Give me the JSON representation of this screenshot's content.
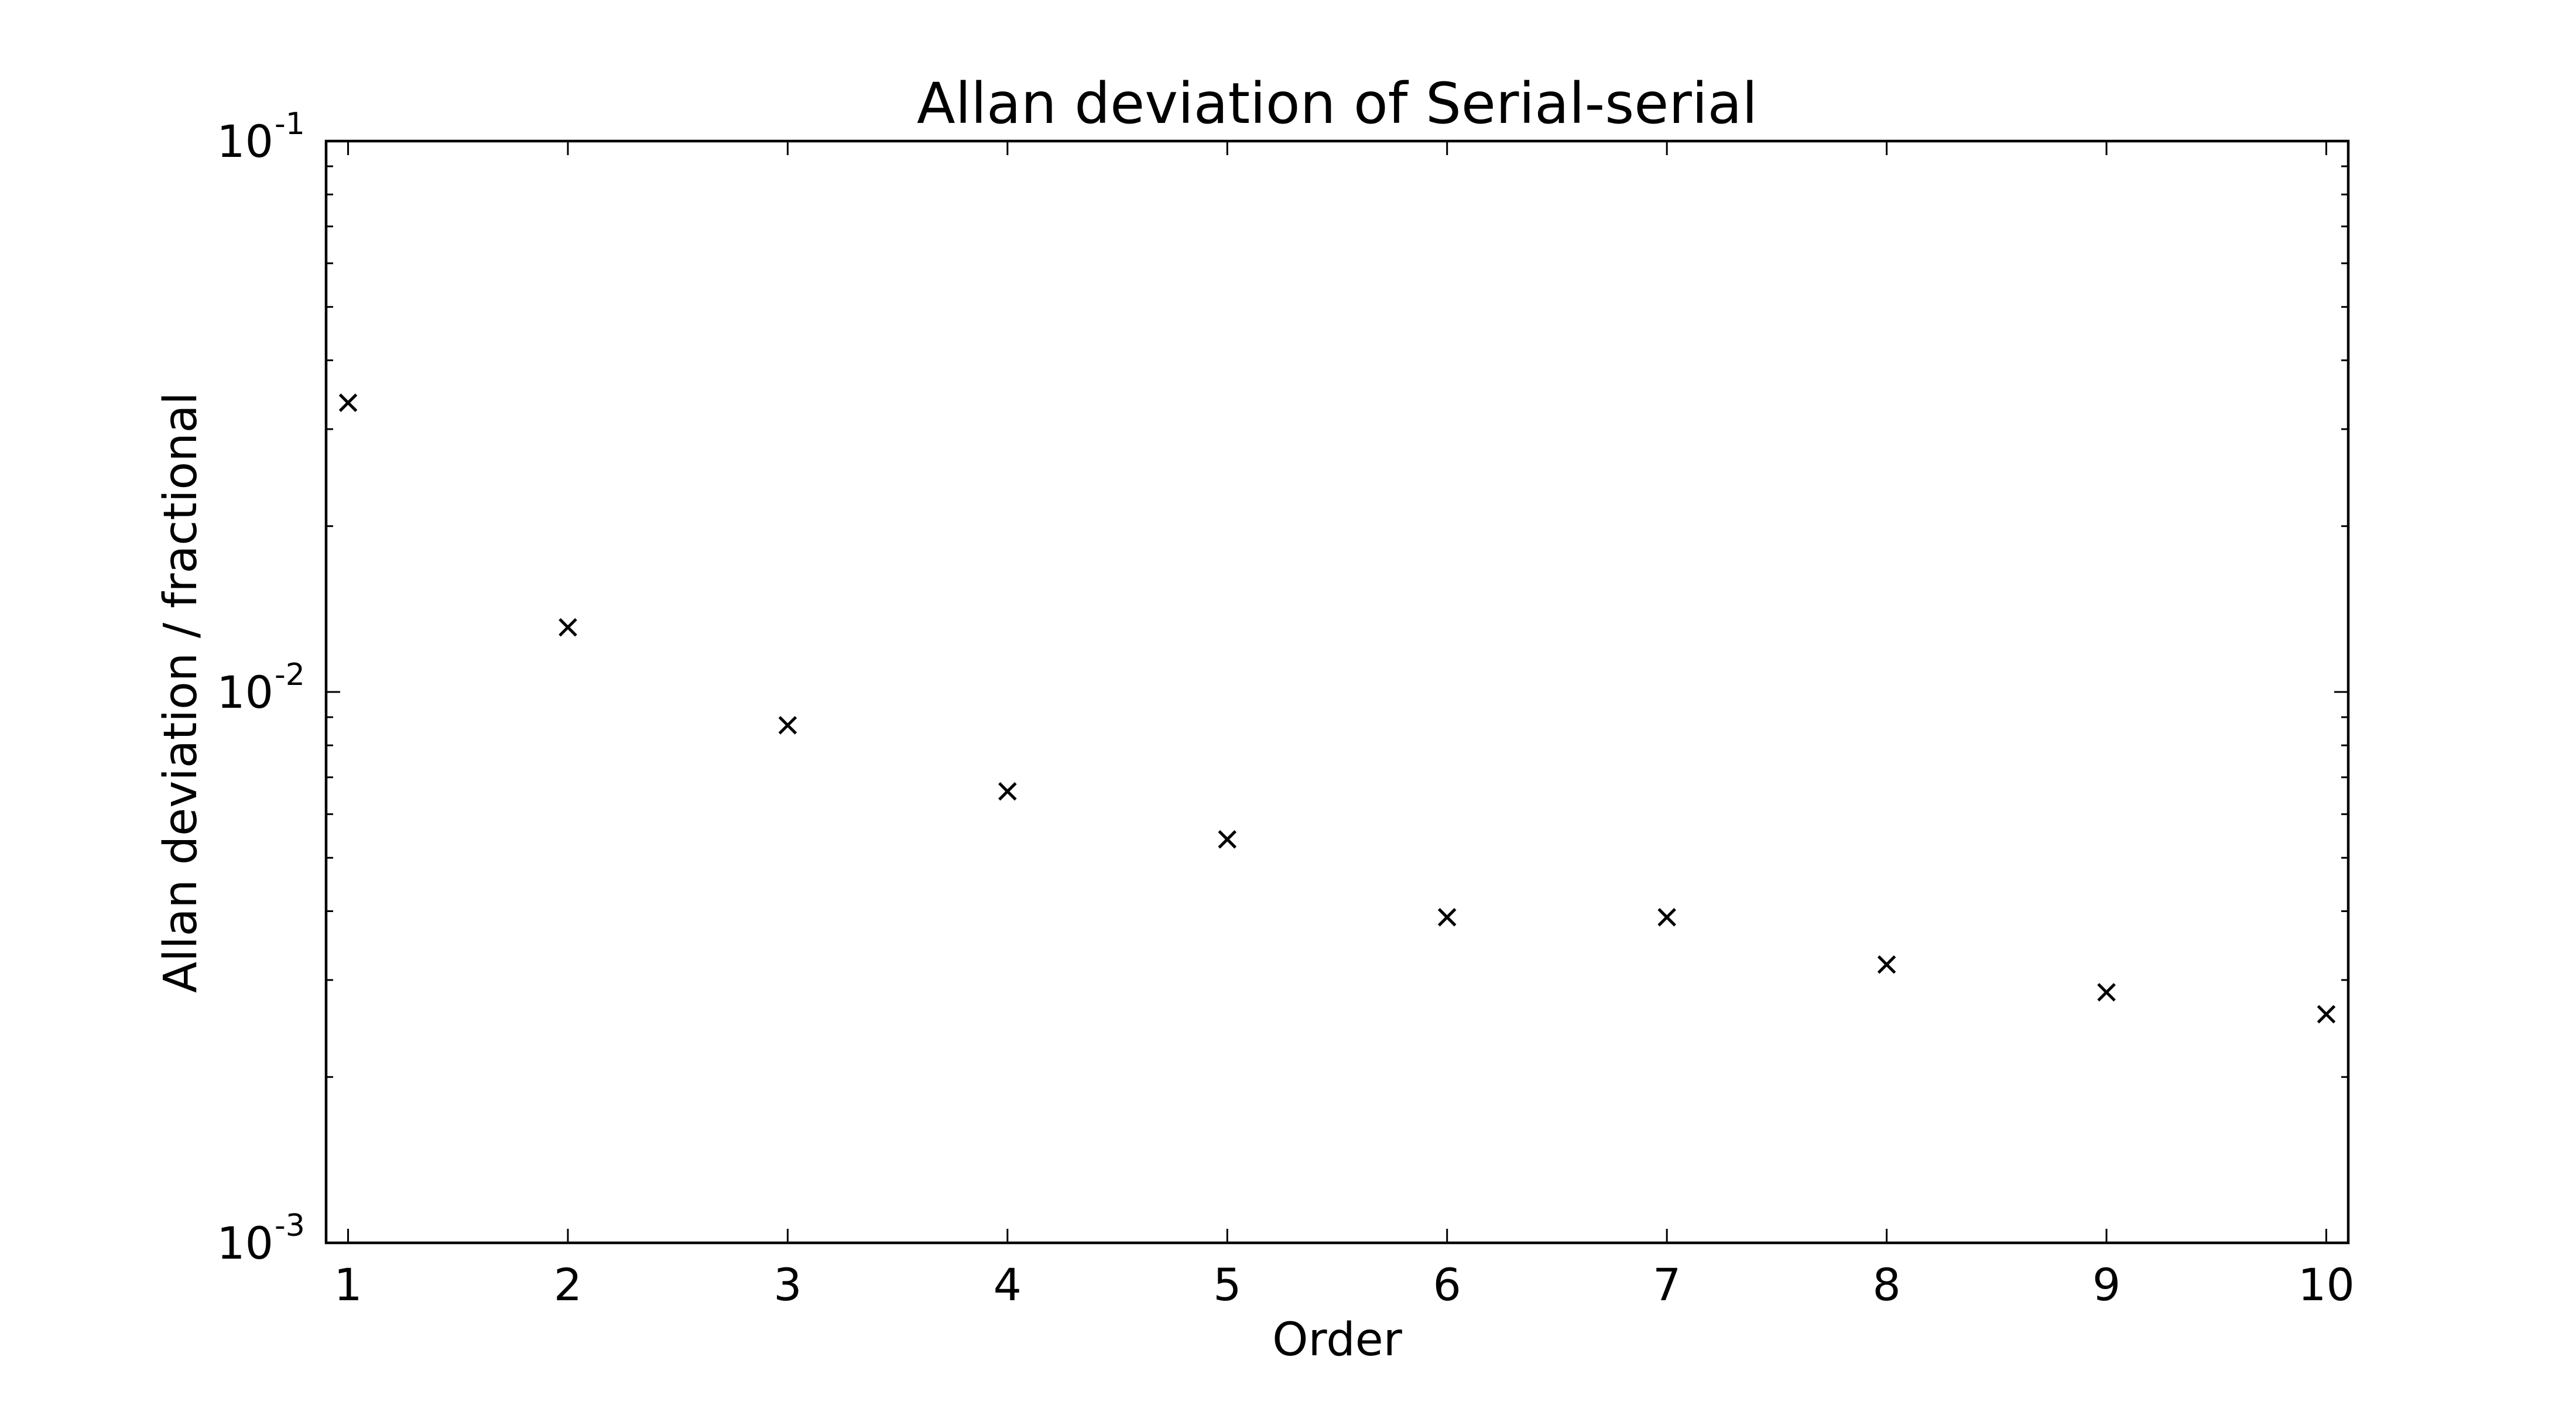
{
  "chart_data": {
    "type": "scatter",
    "title": "Allan deviation of Serial-serial",
    "xlabel": "Order",
    "ylabel": "Allan deviation / fractional",
    "x": [
      1,
      2,
      3,
      4,
      5,
      6,
      7,
      8,
      9,
      10
    ],
    "series": [
      {
        "values": [
          0.0335,
          0.0131,
          0.0087,
          0.0066,
          0.0054,
          0.0039,
          0.0039,
          0.0032,
          0.00285,
          0.0026
        ],
        "marker": "x",
        "color": "#000000"
      }
    ],
    "xlim": [
      0.9,
      10.1
    ],
    "ylim": [
      0.001,
      0.1
    ],
    "yscale": "log",
    "xticks": [
      "1",
      "2",
      "3",
      "4",
      "5",
      "6",
      "7",
      "8",
      "9",
      "10"
    ],
    "yticks": [
      {
        "value": 0.001,
        "base": "10",
        "exp": "-3"
      },
      {
        "value": 0.01,
        "base": "10",
        "exp": "-2"
      },
      {
        "value": 0.1,
        "base": "10",
        "exp": "-1"
      }
    ],
    "grid": false,
    "legend": "none"
  }
}
